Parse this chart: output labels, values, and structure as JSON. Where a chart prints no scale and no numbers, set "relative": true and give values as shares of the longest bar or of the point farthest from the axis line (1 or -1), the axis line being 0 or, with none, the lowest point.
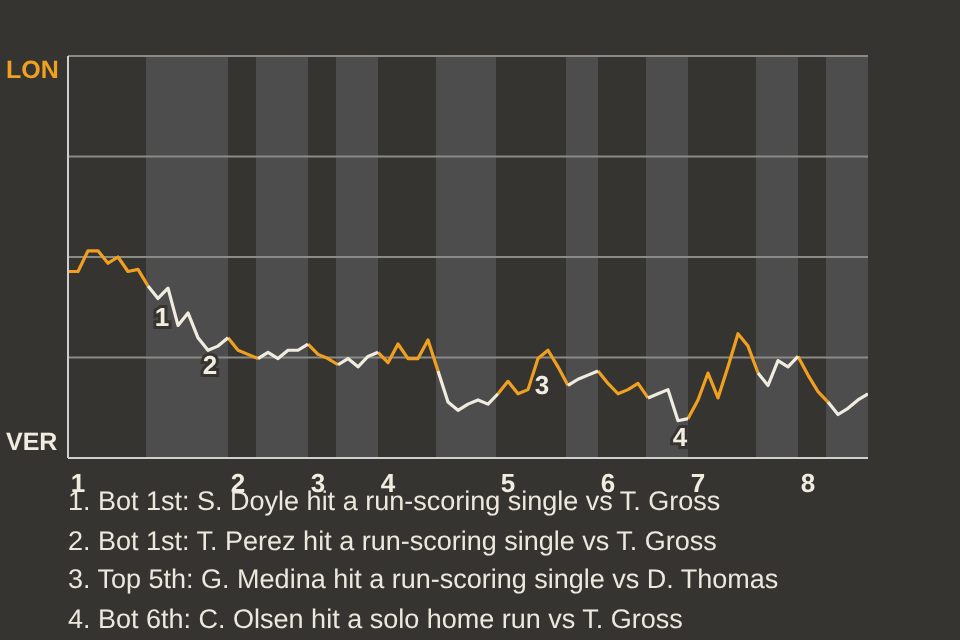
{
  "chart_data": {
    "type": "line",
    "relative": true,
    "ref_lines": [
      {
        "axis": "y",
        "value": 0.485,
        "color": "#8a8a86"
      },
      {
        "axis": "y",
        "value": 0.97,
        "color": "#8a8a86"
      },
      {
        "axis": "y",
        "value": 1.455,
        "color": "#8a8a86"
      }
    ],
    "legend": false,
    "marker": "none",
    "line_style": "solid",
    "categories": [
      null,
      "1",
      null,
      null,
      null,
      null,
      null,
      null,
      null,
      null,
      null,
      null,
      null,
      null,
      null,
      null,
      null,
      "2",
      null,
      null,
      null,
      null,
      null,
      null,
      null,
      "3",
      null,
      null,
      null,
      null,
      null,
      null,
      "4",
      null,
      null,
      null,
      null,
      null,
      null,
      null,
      null,
      null,
      null,
      null,
      "5",
      null,
      null,
      null,
      null,
      null,
      null,
      null,
      null,
      null,
      "6",
      null,
      null,
      null,
      null,
      null,
      null,
      null,
      null,
      "7",
      null,
      null,
      null,
      null,
      null,
      null,
      null,
      null,
      null,
      null,
      "8",
      null,
      null,
      null,
      null,
      null,
      null
    ],
    "series": [
      {
        "color": "#f0a020",
        "values": [
          0.9,
          0.9,
          1,
          1,
          0.94,
          0.97,
          0.9,
          0.91,
          0.83,
          null,
          null,
          null,
          null,
          null,
          null,
          null,
          0.58,
          0.52,
          0.5,
          0.48,
          null,
          null,
          null,
          null,
          0.55,
          0.5,
          0.48,
          0.45,
          null,
          null,
          null,
          0.51,
          0.46,
          0.55,
          0.48,
          0.48,
          0.57,
          0.42,
          null,
          null,
          null,
          null,
          null,
          0.31,
          0.37,
          0.31,
          0.33,
          0.48,
          0.52,
          0.44,
          0.35,
          null,
          null,
          0.42,
          0.36,
          0.31,
          0.33,
          0.36,
          0.29,
          null,
          null,
          null,
          0.19,
          0.28,
          0.41,
          0.29,
          0.44,
          0.6,
          0.54,
          0.41,
          null,
          null,
          null,
          0.49,
          0.4,
          0.32,
          0.27,
          null,
          null,
          null,
          null
        ]
      },
      {
        "color": "#f0ece0",
        "values": [
          null,
          null,
          null,
          null,
          null,
          null,
          null,
          null,
          0.83,
          0.77,
          0.82,
          0.64,
          0.7,
          0.58,
          0.52,
          0.54,
          0.58,
          null,
          null,
          0.48,
          0.51,
          0.48,
          0.52,
          0.52,
          0.55,
          null,
          null,
          0.45,
          0.48,
          0.44,
          0.49,
          0.51,
          null,
          null,
          null,
          null,
          null,
          0.42,
          0.27,
          0.23,
          0.26,
          0.28,
          0.26,
          0.31,
          null,
          null,
          null,
          null,
          null,
          null,
          0.35,
          0.38,
          0.4,
          0.42,
          null,
          null,
          null,
          null,
          0.29,
          0.31,
          0.33,
          0.18,
          0.19,
          null,
          null,
          null,
          null,
          null,
          null,
          0.41,
          0.35,
          0.47,
          0.44,
          0.49,
          null,
          null,
          0.27,
          0.21,
          0.24,
          0.28,
          0.31
        ]
      }
    ],
    "annotations": [
      "LON",
      "VER",
      "1",
      "2",
      "3",
      "4",
      "1. Bot 1st: S. Doyle hit a run-scoring single vs T. Gross",
      "2. Bot 1st: T. Perez hit a run-scoring single vs T. Gross",
      "3. Top 5th: G. Medina hit a run-scoring single vs D. Thomas",
      "4. Bot 6th: C. Olsen hit a solo home run vs T. Gross"
    ]
  }
}
